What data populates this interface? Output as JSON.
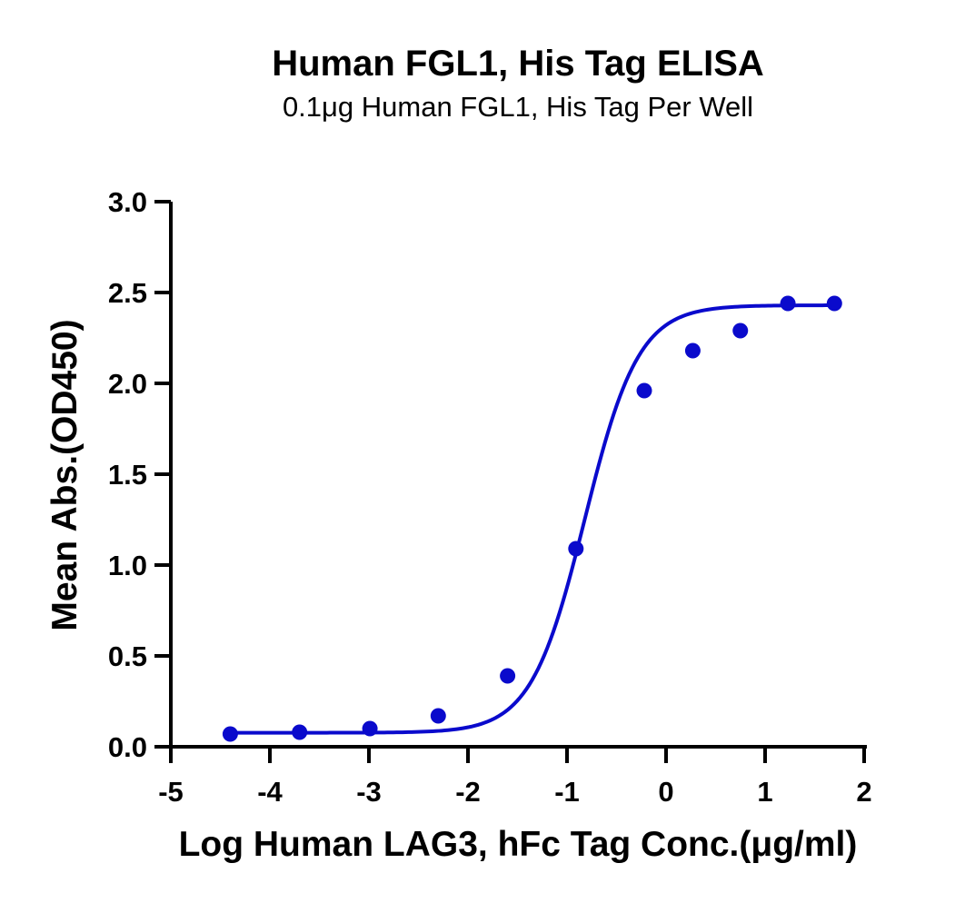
{
  "chart_data": {
    "type": "scatter",
    "title": "Human FGL1, His Tag ELISA",
    "subtitle": "0.1μg Human FGL1, His Tag Per Well",
    "xlabel": "Log Human LAG3, hFc Tag Conc.(μg/ml)",
    "ylabel": "Mean Abs.(OD450)",
    "xlim": [
      -5,
      2
    ],
    "ylim": [
      0,
      3.0
    ],
    "x_ticks": [
      -5,
      -4,
      -3,
      -2,
      -1,
      0,
      1,
      2
    ],
    "x_tick_labels": [
      "-5",
      "-4",
      "-3",
      "-2",
      "-1",
      "0",
      "1",
      "2"
    ],
    "y_ticks": [
      0,
      0.5,
      1.0,
      1.5,
      2.0,
      2.5,
      3.0
    ],
    "y_tick_labels": [
      "0.0",
      "0.5",
      "1.0",
      "1.5",
      "2.0",
      "2.5",
      "3.0"
    ],
    "grid": false,
    "series": [
      {
        "color": "#0a0acc",
        "x": [
          -4.4,
          -3.7,
          -2.99,
          -2.3,
          -1.6,
          -0.91,
          -0.22,
          0.27,
          0.75,
          1.23,
          1.7
        ],
        "y": [
          0.07,
          0.08,
          0.1,
          0.17,
          0.39,
          1.09,
          1.96,
          2.18,
          2.29,
          2.44,
          2.44
        ],
        "fit": {
          "model": "4PL",
          "bottom": 0.077,
          "top": 2.43,
          "log_ec50": -0.82,
          "hill_slope": 1.6
        }
      }
    ]
  }
}
